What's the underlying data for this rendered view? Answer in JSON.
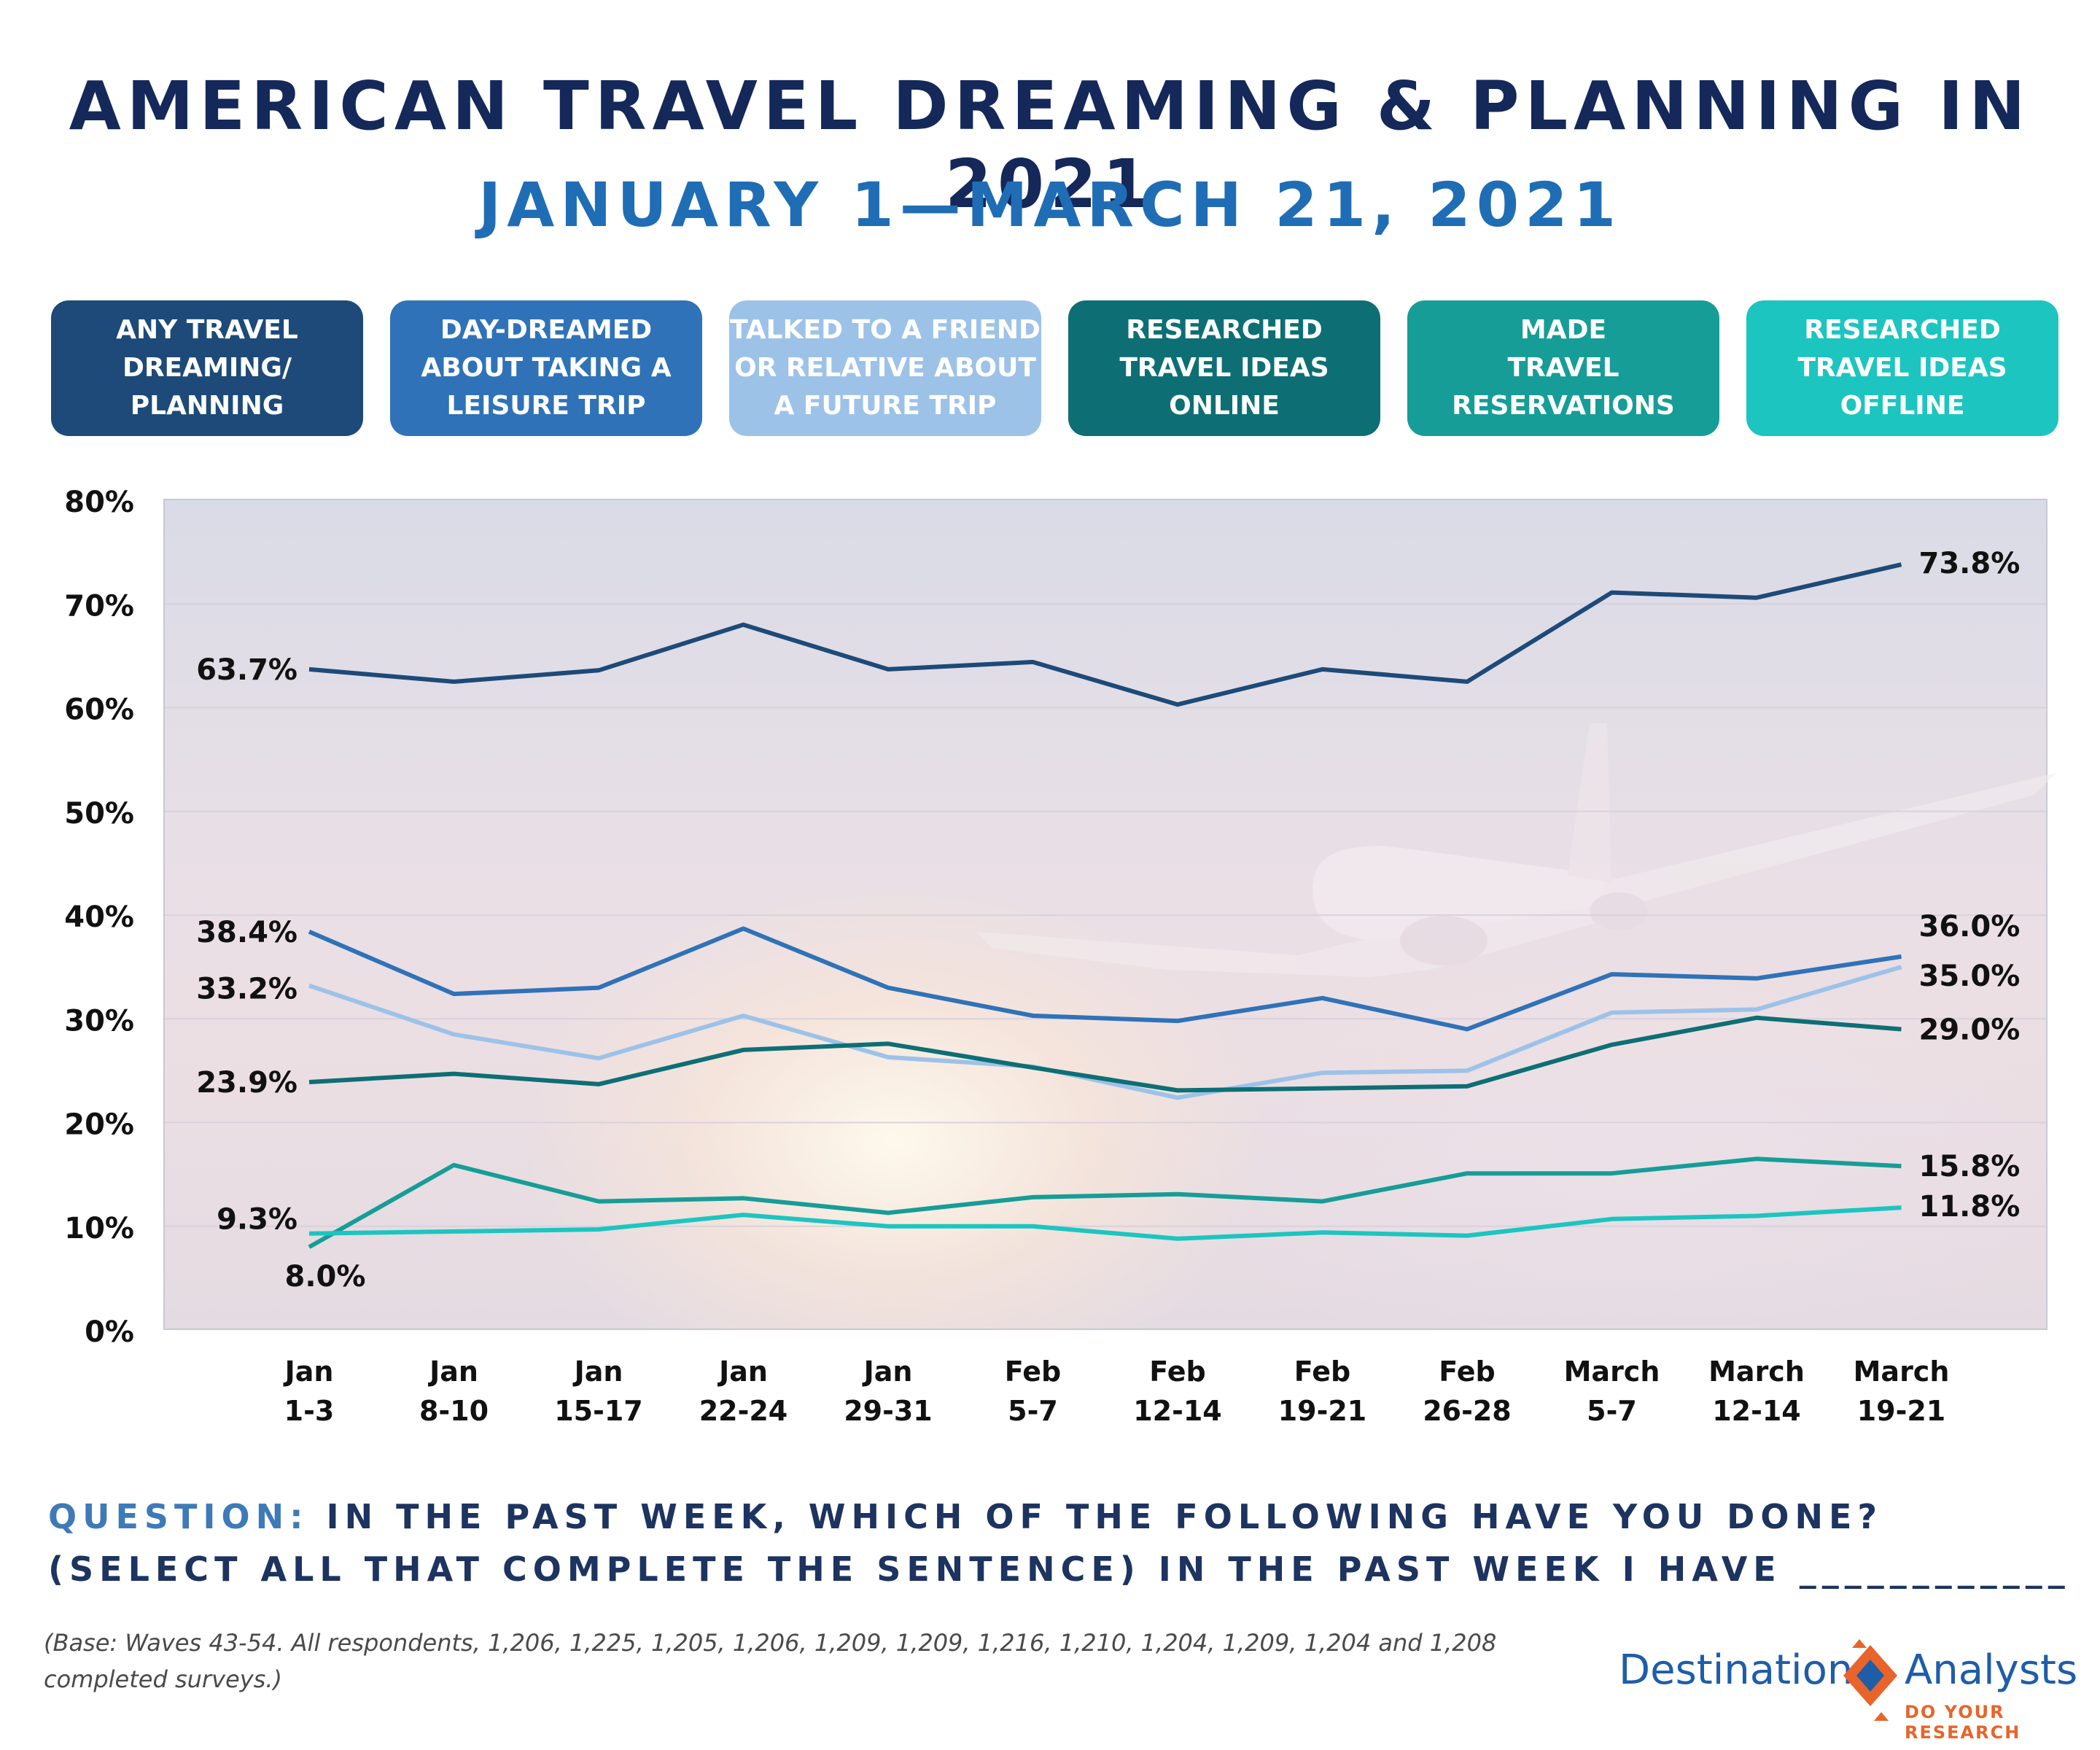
{
  "header": {
    "title": "AMERICAN TRAVEL DREAMING & PLANNING IN 2021",
    "subtitle": "JANUARY 1—MARCH 21, 2021"
  },
  "legend": [
    {
      "label": "ANY TRAVEL\nDREAMING/\nPLANNING",
      "color": "#1d4a78"
    },
    {
      "label": "DAY-DREAMED\nABOUT TAKING A\nLEISURE TRIP",
      "color": "#2f72b8"
    },
    {
      "label": "TALKED TO A FRIEND\nOR RELATIVE ABOUT\nA FUTURE TRIP",
      "color": "#9dc2e8"
    },
    {
      "label": "RESEARCHED\nTRAVEL IDEAS\nONLINE",
      "color": "#0d6f74"
    },
    {
      "label": "MADE\nTRAVEL\nRESERVATIONS",
      "color": "#169d97"
    },
    {
      "label": "RESEARCHED\nTRAVEL IDEAS\nOFFLINE",
      "color": "#1cc5c0"
    }
  ],
  "chart_data": {
    "type": "line",
    "categories": [
      "Jan 1-3",
      "Jan 8-10",
      "Jan 15-17",
      "Jan 22-24",
      "Jan 29-31",
      "Feb 5-7",
      "Feb 12-14",
      "Feb 19-21",
      "Feb 26-28",
      "March 5-7",
      "March 12-14",
      "March 19-21"
    ],
    "category_lines": [
      [
        "Jan",
        "1-3"
      ],
      [
        "Jan",
        "8-10"
      ],
      [
        "Jan",
        "15-17"
      ],
      [
        "Jan",
        "22-24"
      ],
      [
        "Jan",
        "29-31"
      ],
      [
        "Feb",
        "5-7"
      ],
      [
        "Feb",
        "12-14"
      ],
      [
        "Feb",
        "19-21"
      ],
      [
        "Feb",
        "26-28"
      ],
      [
        "March",
        "5-7"
      ],
      [
        "March",
        "12-14"
      ],
      [
        "March",
        "19-21"
      ]
    ],
    "y_ticks": [
      "0%",
      "10%",
      "20%",
      "30%",
      "40%",
      "50%",
      "60%",
      "70%",
      "80%"
    ],
    "ylim": [
      0,
      80
    ],
    "grid": true,
    "series": [
      {
        "name": "ANY TRAVEL DREAMING/ PLANNING",
        "color": "#1d4a78",
        "values": [
          63.7,
          62.5,
          63.6,
          68.0,
          63.7,
          64.4,
          60.3,
          63.7,
          62.5,
          71.1,
          70.6,
          73.8
        ],
        "first_label": "63.7%",
        "last_label": "73.8%"
      },
      {
        "name": "DAY-DREAMED ABOUT TAKING A LEISURE TRIP",
        "color": "#2f72b8",
        "values": [
          38.4,
          32.4,
          33.0,
          38.7,
          33.0,
          30.3,
          29.8,
          32.0,
          29.0,
          34.3,
          33.9,
          36.0
        ],
        "first_label": "38.4%",
        "last_label": "36.0%"
      },
      {
        "name": "TALKED TO A FRIEND OR RELATIVE ABOUT A FUTURE TRIP",
        "color": "#9dc2e8",
        "values": [
          33.2,
          28.5,
          26.2,
          30.3,
          26.3,
          25.4,
          22.4,
          24.8,
          25.0,
          30.6,
          30.9,
          35.0
        ],
        "first_label": "33.2%",
        "last_label": "35.0%"
      },
      {
        "name": "RESEARCHED TRAVEL IDEAS ONLINE",
        "color": "#0d6f74",
        "values": [
          23.9,
          24.7,
          23.7,
          27.0,
          27.6,
          25.3,
          23.1,
          23.3,
          23.5,
          27.5,
          30.1,
          29.0
        ],
        "first_label": "23.9%",
        "last_label": "29.0%"
      },
      {
        "name": "MADE TRAVEL RESERVATIONS",
        "color": "#169d97",
        "values": [
          8.0,
          15.9,
          12.4,
          12.7,
          11.3,
          12.8,
          13.1,
          12.4,
          15.1,
          15.1,
          16.5,
          15.8
        ],
        "first_label": "8.0%",
        "last_label": "15.8%"
      },
      {
        "name": "RESEARCHED TRAVEL IDEAS OFFLINE",
        "color": "#1cc5c0",
        "values": [
          9.3,
          9.5,
          9.7,
          11.1,
          10.0,
          10.0,
          8.8,
          9.4,
          9.1,
          10.7,
          11.0,
          11.8
        ],
        "first_label": "9.3%",
        "last_label": "11.8%"
      }
    ]
  },
  "question": {
    "label": "QUESTION:",
    "line1": "IN THE PAST WEEK, WHICH OF THE FOLLOWING HAVE YOU DONE?",
    "line2": "(SELECT ALL THAT COMPLETE THE SENTENCE) IN THE PAST WEEK I HAVE ____________"
  },
  "footnote": "(Base: Waves 43-54.  All respondents, 1,206, 1,225, 1,205, 1,206, 1,209, 1,209, 1,216, 1,210, 1,204, 1,209, 1,204 and 1,208 completed surveys.)",
  "logo": {
    "word1": "Destination",
    "word2": "Analysts",
    "tagline": "DO YOUR RESEARCH",
    "orange": "#e8642a",
    "blue": "#1f5da8"
  }
}
